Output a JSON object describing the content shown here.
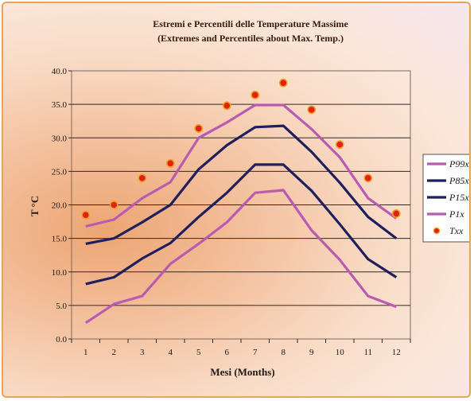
{
  "chart_data": {
    "type": "line",
    "title": "Estremi e Percentili delle Temperature  Massime",
    "subtitle": "(Extremes and Percentiles about Max. Temp.)",
    "xlabel": "Mesi (Months)",
    "ylabel": "T °C",
    "ylim": [
      0,
      40
    ],
    "yticks": [
      "0.0",
      "5.0",
      "10.0",
      "15.0",
      "20.0",
      "25.0",
      "30.0",
      "35.0",
      "40.0"
    ],
    "categories": [
      "1",
      "2",
      "3",
      "4",
      "5",
      "6",
      "7",
      "8",
      "9",
      "10",
      "11",
      "12"
    ],
    "grid": true,
    "legend_position": "right",
    "series": [
      {
        "name": "P99x",
        "kind": "line",
        "color": "#b95bb0",
        "values": [
          16.8,
          17.8,
          21.0,
          23.4,
          30.0,
          32.3,
          34.9,
          34.9,
          31.3,
          27.1,
          21.0,
          18.0
        ]
      },
      {
        "name": "P85x",
        "kind": "line",
        "color": "#1f1f5e",
        "values": [
          14.2,
          15.0,
          17.4,
          20.0,
          25.3,
          28.9,
          31.6,
          31.8,
          27.9,
          23.3,
          18.2,
          15.0
        ]
      },
      {
        "name": "P15x",
        "kind": "line",
        "color": "#1f1f5e",
        "values": [
          8.2,
          9.2,
          12.0,
          14.3,
          18.2,
          21.8,
          26.0,
          26.0,
          22.1,
          17.1,
          11.9,
          9.2
        ]
      },
      {
        "name": "P1x",
        "kind": "line",
        "color": "#b95bb0",
        "values": [
          2.4,
          5.2,
          6.4,
          11.2,
          14.2,
          17.4,
          21.8,
          22.2,
          16.2,
          11.8,
          6.4,
          4.8
        ]
      },
      {
        "name": "Txx",
        "kind": "scatter",
        "color": "#e0201a",
        "values": [
          18.5,
          20.0,
          24.0,
          26.2,
          31.4,
          34.8,
          36.4,
          38.2,
          34.2,
          29.0,
          24.0,
          18.7
        ]
      }
    ]
  }
}
